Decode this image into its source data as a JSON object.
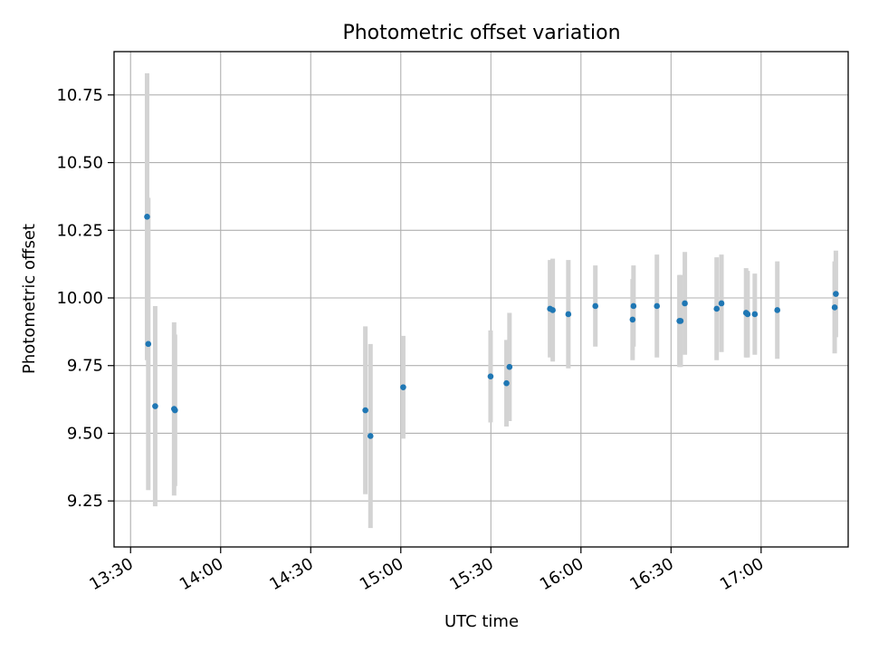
{
  "chart_data": {
    "type": "scatter",
    "title": "Photometric offset variation",
    "xlabel": "UTC time",
    "ylabel": "Photometric offset",
    "x_tick_labels": [
      "13:30",
      "14:00",
      "14:30",
      "15:00",
      "15:30",
      "16:00",
      "16:30",
      "17:00"
    ],
    "x_tick_minutes": [
      810,
      840,
      870,
      900,
      930,
      960,
      990,
      1020
    ],
    "xlim_minutes": [
      804.5,
      1049.0
    ],
    "y_ticks": [
      9.25,
      9.5,
      9.75,
      10.0,
      10.25,
      10.5,
      10.75
    ],
    "y_tick_labels": [
      "9.25",
      "9.50",
      "9.75",
      "10.00",
      "10.25",
      "10.50",
      "10.75"
    ],
    "ylim": [
      9.08,
      10.91
    ],
    "grid": true,
    "point_color": "#1f77b4",
    "errorbar_color": "#d3d3d3",
    "points": [
      {
        "t": 815.5,
        "y": 10.3,
        "err": 0.53
      },
      {
        "t": 815.9,
        "y": 9.83,
        "err": 0.54
      },
      {
        "t": 818.2,
        "y": 9.6,
        "err": 0.37
      },
      {
        "t": 824.5,
        "y": 9.59,
        "err": 0.32
      },
      {
        "t": 824.8,
        "y": 9.585,
        "err": 0.28
      },
      {
        "t": 888.2,
        "y": 9.585,
        "err": 0.31
      },
      {
        "t": 889.9,
        "y": 9.49,
        "err": 0.34
      },
      {
        "t": 900.8,
        "y": 9.67,
        "err": 0.19
      },
      {
        "t": 929.9,
        "y": 9.71,
        "err": 0.17
      },
      {
        "t": 935.2,
        "y": 9.685,
        "err": 0.16
      },
      {
        "t": 936.2,
        "y": 9.745,
        "err": 0.2
      },
      {
        "t": 949.7,
        "y": 9.96,
        "err": 0.18
      },
      {
        "t": 950.6,
        "y": 9.955,
        "err": 0.19
      },
      {
        "t": 955.8,
        "y": 9.94,
        "err": 0.2
      },
      {
        "t": 964.8,
        "y": 9.97,
        "err": 0.15
      },
      {
        "t": 977.2,
        "y": 9.92,
        "err": 0.15
      },
      {
        "t": 977.5,
        "y": 9.97,
        "err": 0.15
      },
      {
        "t": 985.3,
        "y": 9.97,
        "err": 0.19
      },
      {
        "t": 992.8,
        "y": 9.915,
        "err": 0.17
      },
      {
        "t": 993.2,
        "y": 9.915,
        "err": 0.17
      },
      {
        "t": 994.6,
        "y": 9.98,
        "err": 0.19
      },
      {
        "t": 1005.2,
        "y": 9.96,
        "err": 0.19
      },
      {
        "t": 1006.8,
        "y": 9.98,
        "err": 0.18
      },
      {
        "t": 1015.0,
        "y": 9.945,
        "err": 0.165
      },
      {
        "t": 1015.5,
        "y": 9.94,
        "err": 0.16
      },
      {
        "t": 1017.9,
        "y": 9.94,
        "err": 0.15
      },
      {
        "t": 1025.4,
        "y": 9.955,
        "err": 0.18
      },
      {
        "t": 1044.5,
        "y": 9.965,
        "err": 0.17
      },
      {
        "t": 1044.9,
        "y": 10.015,
        "err": 0.16
      }
    ]
  }
}
